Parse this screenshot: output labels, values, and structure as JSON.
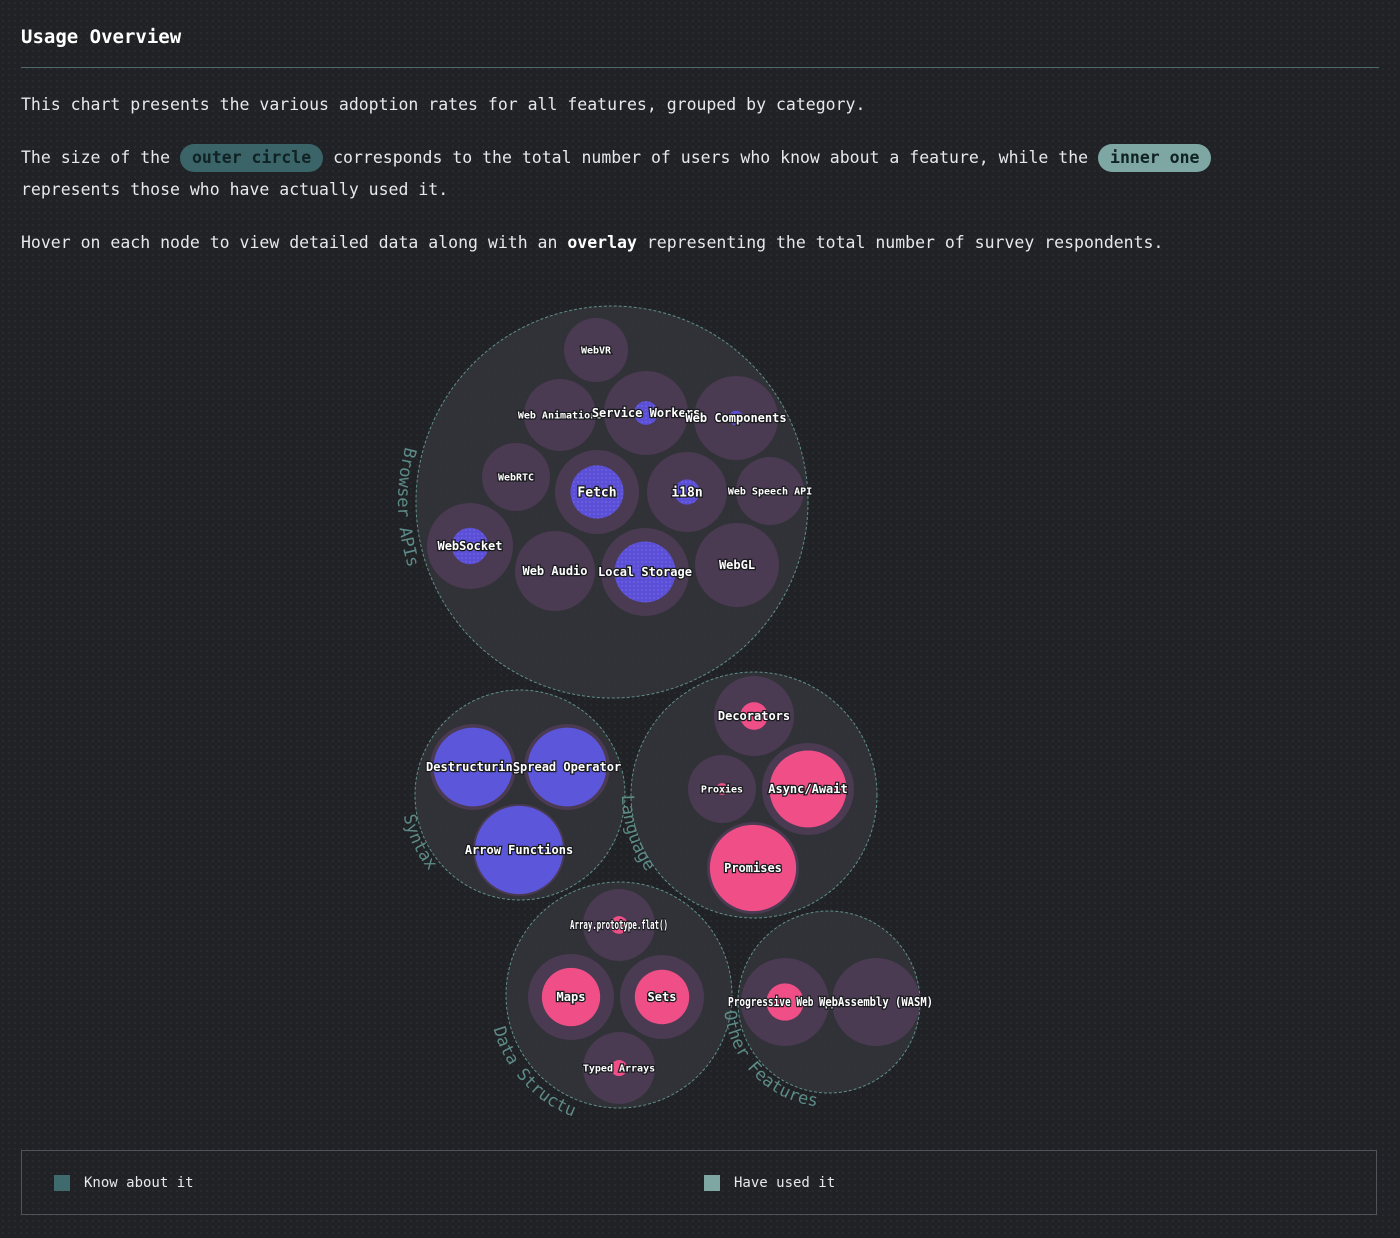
{
  "header": {
    "title": "Usage Overview"
  },
  "intro": {
    "line1": "This chart presents the various adoption rates for all features, grouped by category.",
    "line2_a": "The size of the",
    "pill_outer": "outer circle",
    "line2_b": "corresponds to the total number of users who know about a feature, while the",
    "pill_inner": "inner one",
    "line2_c": "represents those who have actually used it.",
    "line3_a": "Hover on each node to view detailed data along with an",
    "line3_strong": "overlay",
    "line3_b": "representing the total number of survey respondents."
  },
  "legend": {
    "know_label": "Know about it",
    "used_label": "Have used it",
    "know_color": "#3f6a6e",
    "used_color": "#7ea7a3"
  },
  "colors": {
    "category_fill": "#333438",
    "category_stroke": "#5f8f8a",
    "feature_fill": "#4a3a52",
    "browser_used": "#5a4fd6",
    "syntax_used": "#5b56da",
    "language_used": "#ef4f86"
  },
  "chart_data": {
    "type": "circle-packing",
    "categories": [
      {
        "name": "Browser APIs",
        "features": [
          {
            "name": "WebVR",
            "know": 0.3,
            "used": 0.0
          },
          {
            "name": "Web Animations",
            "know": 0.38,
            "used": 0.01
          },
          {
            "name": "Service Workers",
            "know": 0.45,
            "used": 0.08
          },
          {
            "name": "Web Components",
            "know": 0.48,
            "used": 0.03
          },
          {
            "name": "WebRTC",
            "know": 0.33,
            "used": 0.0
          },
          {
            "name": "Fetch",
            "know": 0.5,
            "used": 0.4
          },
          {
            "name": "i18n",
            "know": 0.43,
            "used": 0.1
          },
          {
            "name": "Web Speech API",
            "know": 0.33,
            "used": 0.0
          },
          {
            "name": "WebSocket",
            "know": 0.5,
            "used": 0.18
          },
          {
            "name": "Web Audio",
            "know": 0.42,
            "used": 0.01
          },
          {
            "name": "Local Storage",
            "know": 0.58,
            "used": 0.48
          },
          {
            "name": "WebGL",
            "know": 0.46,
            "used": 0.01
          }
        ]
      },
      {
        "name": "Syntax",
        "features": [
          {
            "name": "Destructuring",
            "know": 0.92,
            "used": 0.84
          },
          {
            "name": "Spread Operator",
            "know": 0.92,
            "used": 0.84
          },
          {
            "name": "Arrow Functions",
            "know": 0.97,
            "used": 0.92
          }
        ]
      },
      {
        "name": "Language",
        "features": [
          {
            "name": "Decorators",
            "know": 0.42,
            "used": 0.12
          },
          {
            "name": "Proxies",
            "know": 0.34,
            "used": 0.03
          },
          {
            "name": "Async/Await",
            "know": 0.86,
            "used": 0.7
          },
          {
            "name": "Promises",
            "know": 0.95,
            "used": 0.88
          }
        ]
      },
      {
        "name": "Data Structures",
        "features": [
          {
            "name": "Array.prototype.flat()",
            "know": 0.4,
            "used": 0.06
          },
          {
            "name": "Maps",
            "know": 0.75,
            "used": 0.46
          },
          {
            "name": "Sets",
            "know": 0.72,
            "used": 0.42
          },
          {
            "name": "Typed Arrays",
            "know": 0.4,
            "used": 0.05
          }
        ]
      },
      {
        "name": "Other Features",
        "features": [
          {
            "name": "Progressive Web Apps",
            "know": 0.8,
            "used": 0.18
          },
          {
            "name": "WebAssembly (WASM)",
            "know": 0.78,
            "used": 0.0
          }
        ]
      }
    ]
  }
}
